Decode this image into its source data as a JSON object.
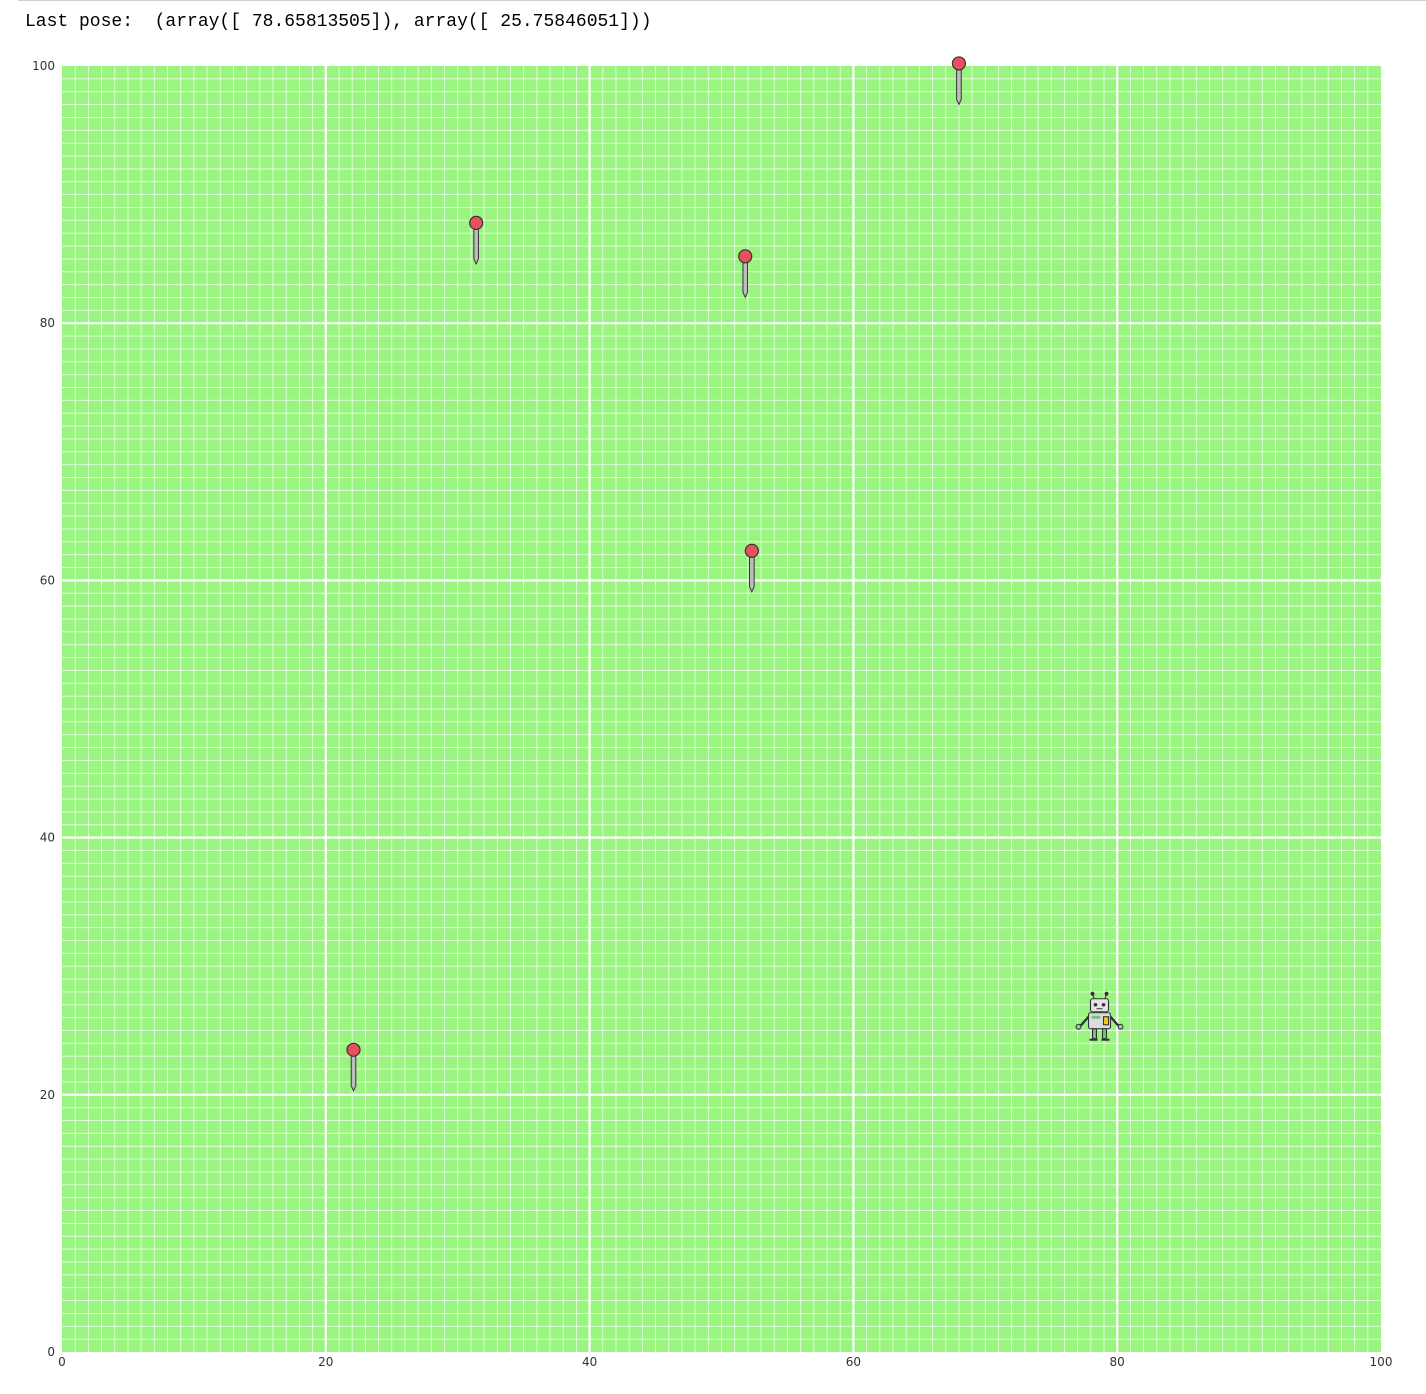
{
  "output": {
    "text": "Last pose:  (array([ 78.65813505]), array([ 25.75846051]))"
  },
  "chart_data": {
    "type": "scatter",
    "title": "",
    "xlabel": "",
    "ylabel": "",
    "xlim": [
      0,
      100
    ],
    "ylim": [
      0,
      100
    ],
    "grid": true,
    "minor_grid": true,
    "background_color": "#99f57f",
    "grid_color": "#ffffff",
    "x_ticks": [
      "0",
      "20",
      "40",
      "60",
      "80",
      "100"
    ],
    "y_ticks": [
      "0",
      "20",
      "40",
      "60",
      "80",
      "100"
    ],
    "landmarks": {
      "marker": "pushpin",
      "head_color": "#e8505b",
      "x": [
        22.1,
        31.4,
        51.8,
        52.3,
        68.0
      ],
      "y": [
        23.5,
        87.8,
        85.2,
        62.3,
        100.2
      ]
    },
    "robot": {
      "marker": "robot-icon",
      "x": 78.65813505,
      "y": 25.75846051
    }
  }
}
